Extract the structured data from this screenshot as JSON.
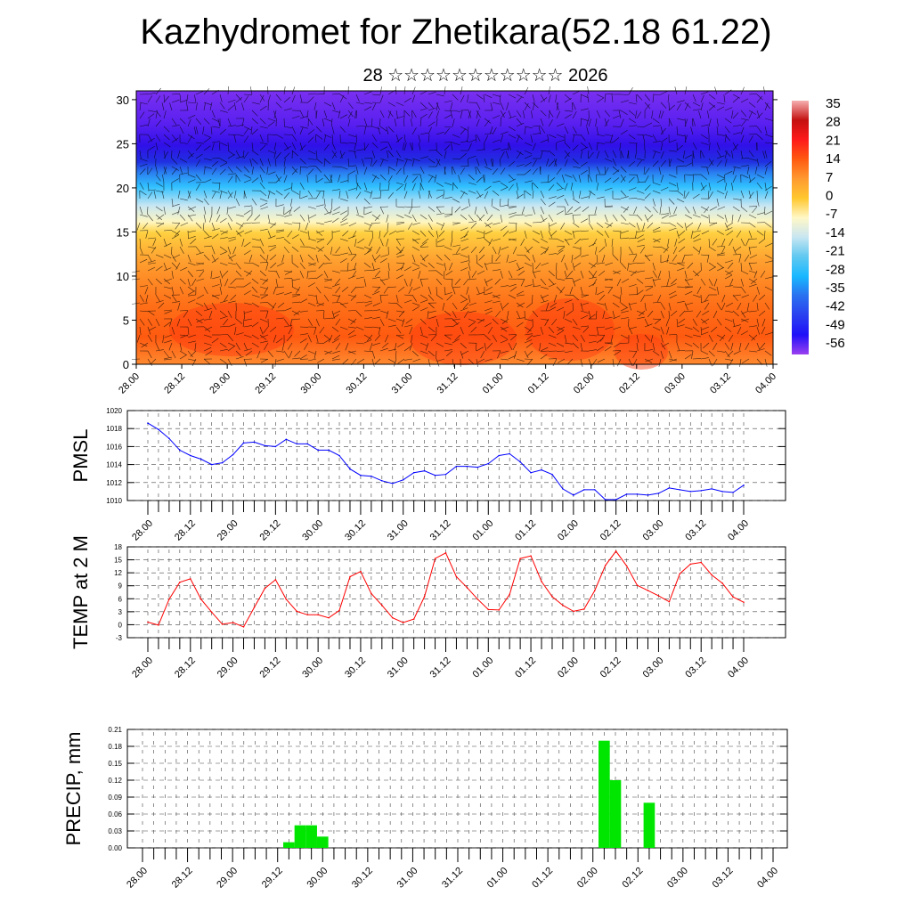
{
  "title": "Kazhydromet for Zhetikara(52.18 61.22)",
  "subtitle": "28 ☆☆☆☆☆☆☆☆☆☆☆ 2026",
  "chart_data": [
    {
      "type": "heatmap",
      "name": "temperature-wind cross-section",
      "ylim": [
        0,
        31
      ],
      "yticks": [
        0,
        5,
        10,
        15,
        20,
        25,
        30
      ],
      "xtick_labels": [
        "28.00",
        "28.12",
        "29.00",
        "29.12",
        "30.00",
        "30.12",
        "31.00",
        "31.12",
        "01.00",
        "01.12",
        "02.00",
        "02.12",
        "03.00",
        "03.12",
        "04.00"
      ],
      "colorbar_labels": [
        "35",
        "28",
        "21",
        "14",
        "7",
        "0",
        "-7",
        "-14",
        "-21",
        "-28",
        "-35",
        "-42",
        "-49",
        "-56"
      ],
      "colorbar_colors": [
        "#f6b0b0",
        "#c41010",
        "#ff1a1a",
        "#ff5a10",
        "#ff9a30",
        "#ffc830",
        "#fff8c8",
        "#c8e6f2",
        "#60c8f0",
        "#18b8ff",
        "#2a70f0",
        "#2a40f0",
        "#2010f8",
        "#9a40f0"
      ]
    },
    {
      "type": "line",
      "ylabel": "PMSL",
      "color": "#0000ff",
      "ylim": [
        1010,
        1020
      ],
      "yticks": [
        "1010",
        "1012",
        "1014",
        "1016",
        "1018",
        "1020"
      ],
      "xtick_labels": [
        "28.00",
        "28.12",
        "29.00",
        "29.12",
        "30.00",
        "30.12",
        "31.00",
        "31.12",
        "01.00",
        "01.12",
        "02.00",
        "02.12",
        "03.00",
        "03.12",
        "04.00"
      ],
      "step_hours": 3,
      "values": [
        1018.6,
        1017.9,
        1016.9,
        1015.6,
        1015.0,
        1014.6,
        1014.0,
        1014.2,
        1015.1,
        1016.4,
        1016.5,
        1016.1,
        1016.0,
        1016.8,
        1016.3,
        1016.3,
        1015.6,
        1015.6,
        1015.0,
        1013.5,
        1012.8,
        1012.7,
        1012.2,
        1011.9,
        1012.3,
        1013.1,
        1013.3,
        1012.8,
        1012.9,
        1013.8,
        1013.8,
        1013.7,
        1014.1,
        1015.0,
        1015.2,
        1014.3,
        1013.1,
        1013.4,
        1012.9,
        1011.3,
        1010.6,
        1011.2,
        1011.2,
        1010.1,
        1010.1,
        1010.7,
        1010.7,
        1010.6,
        1010.8,
        1011.4,
        1011.2,
        1011.0,
        1011.1,
        1011.3,
        1011.0,
        1010.9,
        1011.7
      ]
    },
    {
      "type": "line",
      "ylabel": "TEMP at 2 M",
      "color": "#ff0000",
      "ylim": [
        -3,
        18
      ],
      "yticks": [
        "-3",
        "0",
        "3",
        "6",
        "9",
        "12",
        "15",
        "18"
      ],
      "xtick_labels": [
        "28.00",
        "28.12",
        "29.00",
        "29.12",
        "30.00",
        "30.12",
        "31.00",
        "31.12",
        "01.00",
        "01.12",
        "02.00",
        "02.12",
        "03.00",
        "03.12",
        "04.00"
      ],
      "step_hours": 3,
      "values": [
        0.6,
        -0.1,
        5.9,
        9.8,
        10.6,
        5.9,
        2.9,
        0.1,
        0.5,
        -0.5,
        4.0,
        8.4,
        10.4,
        5.9,
        3.1,
        2.3,
        2.3,
        1.6,
        3.3,
        11.1,
        12.3,
        7.2,
        4.5,
        1.6,
        0.5,
        1.3,
        6.5,
        15.3,
        16.6,
        11.1,
        8.6,
        5.9,
        3.5,
        3.4,
        7.0,
        15.3,
        15.9,
        10.0,
        6.5,
        4.5,
        3.1,
        3.6,
        7.9,
        13.7,
        17.0,
        13.6,
        9.1,
        7.9,
        6.7,
        5.3,
        11.8,
        14.0,
        14.4,
        11.5,
        9.6,
        6.4,
        5.2
      ]
    },
    {
      "type": "bar",
      "ylabel": "PRECIP, mm",
      "color": "#00e600",
      "ylim": [
        0,
        0.21
      ],
      "yticks": [
        "0.00",
        "0.03",
        "0.06",
        "0.09",
        "0.12",
        "0.15",
        "0.18",
        "0.21"
      ],
      "xtick_labels": [
        "28.00",
        "28.12",
        "29.00",
        "29.12",
        "30.00",
        "30.12",
        "31.00",
        "31.12",
        "01.00",
        "01.12",
        "02.00",
        "02.12",
        "03.00",
        "03.12",
        "04.00"
      ],
      "step_hours": 3,
      "bars": [
        {
          "index": 13,
          "value": 0.01
        },
        {
          "index": 14,
          "value": 0.04
        },
        {
          "index": 15,
          "value": 0.04
        },
        {
          "index": 16,
          "value": 0.02
        },
        {
          "index": 41,
          "value": 0.19
        },
        {
          "index": 42,
          "value": 0.12
        },
        {
          "index": 45,
          "value": 0.08
        }
      ]
    }
  ]
}
